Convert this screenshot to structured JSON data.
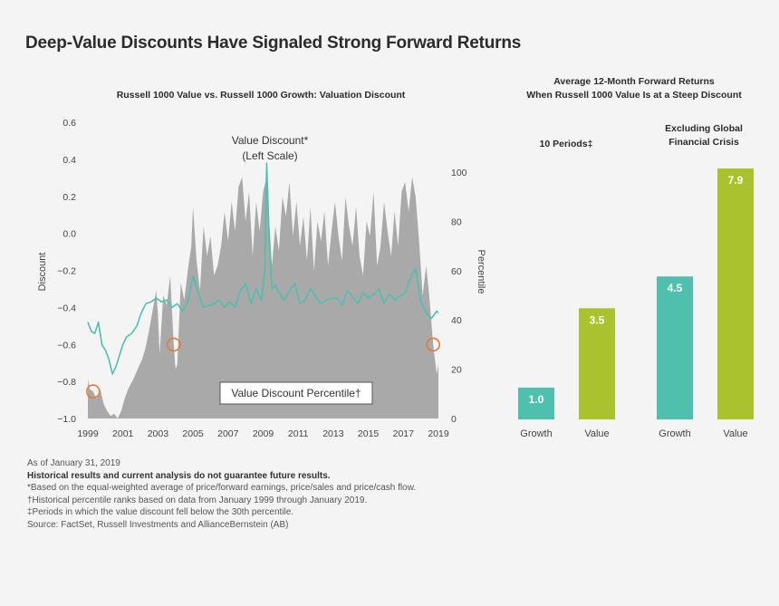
{
  "title": "Deep-Value Discounts Have Signaled Strong Forward Returns",
  "colors": {
    "area": "#a9a9a9",
    "line": "#4fbfae",
    "growth_bar": "#4fbfae",
    "value_bar": "#a9c22d",
    "circle": "#e07b39"
  },
  "chart_data": [
    {
      "type": "line",
      "title": "Russell 1000 Value vs. Russell 1000 Growth: Valuation Discount",
      "ylabel_left": "Discount",
      "ylabel_right": "Percentile",
      "ylim_left": [
        -1.0,
        0.6
      ],
      "yticks_left": [
        "0.6",
        "0.4",
        "0.2",
        "0.0",
        "−0.2",
        "−0.4",
        "−0.6",
        "−0.8",
        "−1.0"
      ],
      "yticks_left_values": [
        0.6,
        0.4,
        0.2,
        0.0,
        -0.2,
        -0.4,
        -0.6,
        -0.8,
        -1.0
      ],
      "ylim_right": [
        0,
        100
      ],
      "yticks_right": [
        "100",
        "80",
        "60",
        "40",
        "20",
        "0"
      ],
      "yticks_right_values": [
        100,
        80,
        60,
        40,
        20,
        0
      ],
      "xlim": [
        1999,
        2019
      ],
      "xticks": [
        "1999",
        "2001",
        "2003",
        "2005",
        "2007",
        "2009",
        "2011",
        "2013",
        "2015",
        "2017",
        "2019"
      ],
      "annotation_line": "Value Discount*",
      "annotation_line_sub": "(Left Scale)",
      "annotation_area": "Value Discount Percentile†",
      "series": [
        {
          "name": "Value Discount",
          "kind": "line",
          "axis": "left",
          "x": [
            1999.0,
            1999.2,
            1999.4,
            1999.6,
            1999.8,
            2000.0,
            2000.2,
            2000.4,
            2000.6,
            2000.8,
            2001.0,
            2001.2,
            2001.5,
            2001.8,
            2002.0,
            2002.3,
            2002.6,
            2002.9,
            2003.2,
            2003.5,
            2003.8,
            2004.1,
            2004.4,
            2004.7,
            2005.0,
            2005.3,
            2005.6,
            2005.9,
            2006.2,
            2006.5,
            2006.8,
            2007.1,
            2007.4,
            2007.7,
            2008.0,
            2008.3,
            2008.6,
            2008.9,
            2009.1,
            2009.2,
            2009.35,
            2009.5,
            2009.7,
            2009.9,
            2010.2,
            2010.5,
            2010.8,
            2011.1,
            2011.4,
            2011.7,
            2012.0,
            2012.3,
            2012.6,
            2012.9,
            2013.2,
            2013.5,
            2013.8,
            2014.1,
            2014.4,
            2014.7,
            2015.0,
            2015.3,
            2015.6,
            2015.9,
            2016.2,
            2016.5,
            2016.8,
            2017.1,
            2017.4,
            2017.7,
            2018.0,
            2018.3,
            2018.6,
            2018.9,
            2019.0
          ],
          "y": [
            -0.48,
            -0.53,
            -0.54,
            -0.48,
            -0.6,
            -0.63,
            -0.68,
            -0.76,
            -0.72,
            -0.66,
            -0.6,
            -0.56,
            -0.54,
            -0.5,
            -0.44,
            -0.38,
            -0.37,
            -0.35,
            -0.37,
            -0.36,
            -0.4,
            -0.38,
            -0.42,
            -0.37,
            -0.23,
            -0.32,
            -0.4,
            -0.39,
            -0.38,
            -0.36,
            -0.4,
            -0.37,
            -0.4,
            -0.31,
            -0.27,
            -0.38,
            -0.3,
            -0.36,
            -0.2,
            0.38,
            -0.04,
            -0.3,
            -0.28,
            -0.32,
            -0.36,
            -0.31,
            -0.27,
            -0.38,
            -0.36,
            -0.3,
            -0.34,
            -0.38,
            -0.36,
            -0.35,
            -0.35,
            -0.39,
            -0.31,
            -0.34,
            -0.38,
            -0.32,
            -0.35,
            -0.33,
            -0.3,
            -0.38,
            -0.33,
            -0.36,
            -0.34,
            -0.32,
            -0.24,
            -0.19,
            -0.37,
            -0.43,
            -0.46,
            -0.42,
            -0.43
          ]
        },
        {
          "name": "Value Discount Percentile",
          "kind": "area",
          "axis": "right",
          "x": [
            1999.0,
            1999.1,
            1999.3,
            1999.5,
            1999.7,
            1999.9,
            2000.1,
            2000.3,
            2000.5,
            2000.7,
            2000.9,
            2001.1,
            2001.3,
            2001.6,
            2001.9,
            2002.1,
            2002.3,
            2002.5,
            2002.7,
            2002.9,
            2003.0,
            2003.1,
            2003.3,
            2003.5,
            2003.7,
            2003.9,
            2004.0,
            2004.1,
            2004.3,
            2004.5,
            2004.7,
            2004.9,
            2005.0,
            2005.2,
            2005.4,
            2005.6,
            2005.8,
            2006.0,
            2006.2,
            2006.4,
            2006.6,
            2006.8,
            2007.0,
            2007.2,
            2007.4,
            2007.6,
            2007.8,
            2008.0,
            2008.2,
            2008.4,
            2008.6,
            2008.8,
            2009.0,
            2009.2,
            2009.35,
            2009.5,
            2009.7,
            2009.9,
            2010.1,
            2010.3,
            2010.5,
            2010.7,
            2010.9,
            2011.1,
            2011.3,
            2011.5,
            2011.7,
            2011.9,
            2012.1,
            2012.3,
            2012.5,
            2012.7,
            2012.9,
            2013.1,
            2013.3,
            2013.5,
            2013.7,
            2013.9,
            2014.1,
            2014.3,
            2014.5,
            2014.7,
            2014.9,
            2015.1,
            2015.3,
            2015.5,
            2015.7,
            2015.9,
            2016.1,
            2016.3,
            2016.5,
            2016.7,
            2016.9,
            2017.1,
            2017.3,
            2017.5,
            2017.7,
            2017.9,
            2018.1,
            2018.3,
            2018.5,
            2018.7,
            2018.9,
            2019.0
          ],
          "y": [
            16,
            12,
            11,
            8,
            12,
            6,
            3,
            1,
            2,
            0,
            3,
            8,
            12,
            16,
            21,
            24,
            29,
            36,
            44,
            52,
            42,
            26,
            50,
            46,
            58,
            30,
            20,
            22,
            55,
            48,
            60,
            70,
            86,
            64,
            52,
            78,
            66,
            74,
            58,
            62,
            70,
            84,
            72,
            88,
            76,
            94,
            98,
            80,
            92,
            66,
            88,
            76,
            92,
            104,
            80,
            62,
            78,
            68,
            90,
            82,
            96,
            74,
            88,
            70,
            82,
            64,
            86,
            60,
            80,
            72,
            84,
            62,
            76,
            88,
            74,
            64,
            90,
            78,
            70,
            86,
            66,
            58,
            80,
            74,
            92,
            62,
            70,
            88,
            76,
            66,
            84,
            70,
            92,
            96,
            84,
            98,
            90,
            72,
            50,
            62,
            48,
            30,
            18,
            22
          ]
        }
      ],
      "circles_x": [
        1999.3,
        2003.9,
        2018.7
      ]
    },
    {
      "type": "bar",
      "title_line1": "Average 12-Month Forward Returns",
      "title_line2": "When Russell 1000 Value Is at a Steep Discount",
      "groups": [
        {
          "label_line1": "",
          "label_line2": "10 Periods‡",
          "categories": [
            "Growth",
            "Value"
          ],
          "values": [
            1.0,
            3.5
          ],
          "value_labels": [
            "1.0",
            "3.5"
          ]
        },
        {
          "label_line1": "Excluding Global",
          "label_line2": "Financial Crisis",
          "categories": [
            "Growth",
            "Value"
          ],
          "values": [
            4.5,
            7.9
          ],
          "value_labels": [
            "4.5",
            "7.9"
          ]
        }
      ],
      "ylim": [
        0,
        8.5
      ]
    }
  ],
  "notes": {
    "date": "As of January 31, 2019",
    "disclaimer": "Historical results and current analysis do not guarantee future results.",
    "footnote_1": "*Based on the equal-weighted average of price/forward earnings, price/sales and price/cash flow.",
    "footnote_2": "†Historical percentile ranks based on data from January 1999 through January 2019.",
    "footnote_3": "‡Periods in which the value discount fell below the 30th percentile.",
    "source": "Source: FactSet, Russell Investments and AllianceBernstein (AB)"
  }
}
